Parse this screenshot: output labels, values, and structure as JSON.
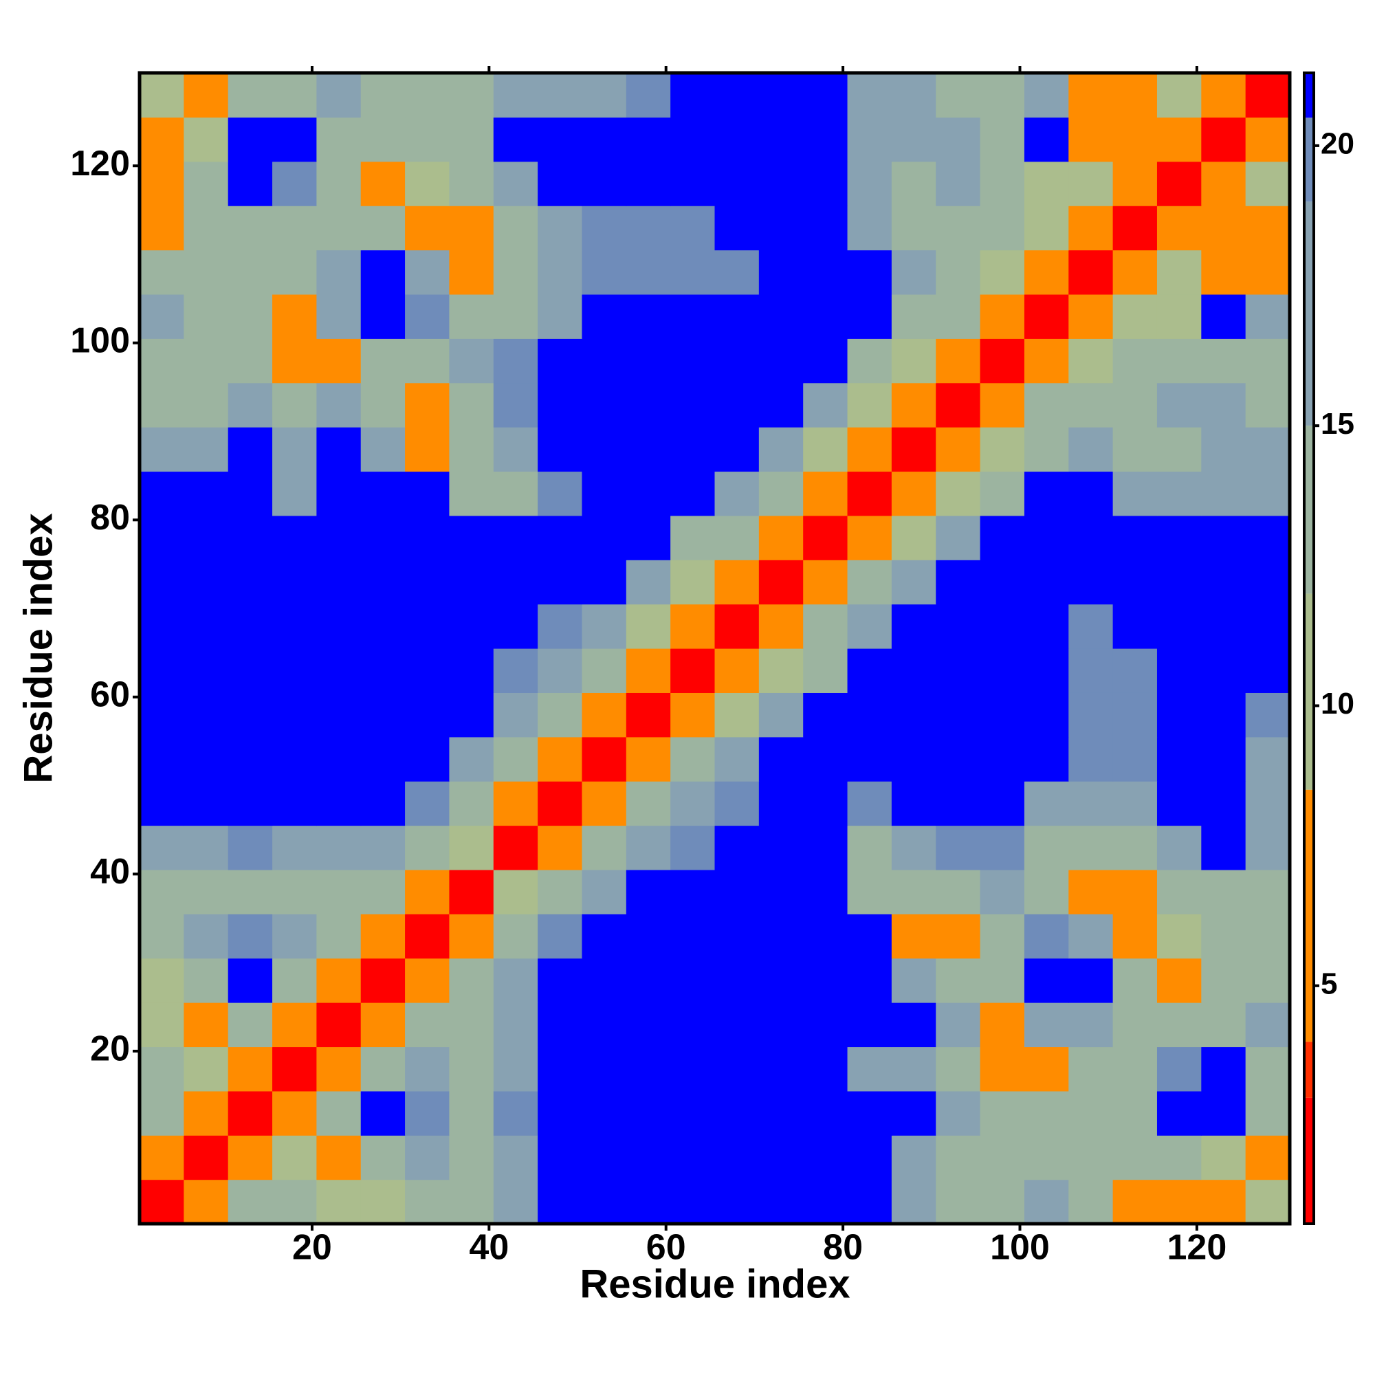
{
  "chart_data": {
    "type": "heatmap",
    "xlabel": "Residue index",
    "ylabel": "Residue index",
    "xlim": [
      0.5,
      130.5
    ],
    "ylim": [
      0.5,
      130.5
    ],
    "xticks": [
      20,
      40,
      60,
      80,
      100,
      120
    ],
    "yticks": [
      20,
      40,
      60,
      80,
      100,
      120
    ],
    "x_edges": [
      0.5,
      5.5,
      10.5,
      15.5,
      20.5,
      25.5,
      30.5,
      35.5,
      40.5,
      45.5,
      50.5,
      55.5,
      60.5,
      65.5,
      70.5,
      75.5,
      80.5,
      85.5,
      90.5,
      95.5,
      100.5,
      105.5,
      110.5,
      115.5,
      120.5,
      125.5,
      130.5
    ],
    "y_edges": [
      0.5,
      5.5,
      10.5,
      15.5,
      20.5,
      25.5,
      30.5,
      35.5,
      40.5,
      45.5,
      50.5,
      55.5,
      60.5,
      65.5,
      70.5,
      75.5,
      80.5,
      85.5,
      90.5,
      95.5,
      100.5,
      105.5,
      110.5,
      115.5,
      120.5,
      125.5,
      130.5
    ],
    "zlim": [
      0.75,
      21.3
    ],
    "zticks": [
      5,
      10,
      15,
      20
    ],
    "colorscale": [
      [
        0.75,
        "#ff0000"
      ],
      [
        3,
        "#ff3000"
      ],
      [
        4,
        "#ff8c00"
      ],
      [
        8.5,
        "#abbd8d"
      ],
      [
        12,
        "#9cb4a0"
      ],
      [
        15,
        "#88a2b2"
      ],
      [
        19,
        "#6f8cba"
      ],
      [
        20.5,
        "#0000ff"
      ]
    ],
    "z": [
      [
        2,
        7,
        12,
        12,
        9,
        11,
        12,
        14,
        18,
        21,
        21,
        21,
        21,
        21,
        21,
        21,
        21,
        17,
        14,
        12,
        16,
        14,
        8,
        7,
        7,
        11
      ],
      [
        7,
        2,
        7,
        9,
        6,
        14,
        16,
        14,
        18,
        21,
        21,
        21,
        21,
        21,
        21,
        21,
        21,
        17,
        14,
        13,
        14,
        13,
        12,
        14,
        11,
        8
      ],
      [
        12,
        7,
        2,
        5,
        12,
        21,
        20,
        14,
        19,
        21,
        21,
        21,
        21,
        21,
        21,
        21,
        21,
        21,
        15,
        12,
        12,
        12,
        13,
        21,
        21,
        14
      ],
      [
        12,
        9,
        5,
        2,
        7,
        14,
        15,
        13,
        17,
        21,
        21,
        21,
        21,
        21,
        21,
        21,
        18,
        17,
        13,
        6,
        8,
        14,
        12,
        20,
        21,
        13
      ],
      [
        9,
        6,
        12,
        7,
        2,
        7,
        12,
        13,
        17,
        21,
        21,
        21,
        21,
        21,
        21,
        21,
        21,
        21,
        17,
        7,
        16,
        18,
        13,
        13,
        13,
        16
      ],
      [
        11,
        14,
        21,
        14,
        7,
        2,
        7,
        12,
        15,
        21,
        21,
        21,
        21,
        21,
        21,
        21,
        21,
        15,
        14,
        14,
        21,
        21,
        12,
        8,
        12,
        12
      ],
      [
        12,
        16,
        20,
        15,
        12,
        7,
        2,
        7,
        13,
        19,
        21,
        21,
        21,
        21,
        21,
        21,
        21,
        8,
        7,
        13,
        20,
        17,
        7,
        11,
        13,
        13
      ],
      [
        14,
        14,
        14,
        13,
        13,
        12,
        7,
        2,
        9,
        13,
        17,
        21,
        21,
        21,
        21,
        21,
        13,
        12,
        13,
        15,
        13,
        7,
        8,
        13,
        14,
        13
      ],
      [
        18,
        18,
        19,
        17,
        17,
        15,
        13,
        9,
        2,
        8,
        12,
        17,
        19,
        21,
        21,
        21,
        14,
        15,
        19,
        20,
        14,
        13,
        14,
        17,
        21,
        15
      ],
      [
        21,
        21,
        21,
        21,
        21,
        21,
        19,
        13,
        8,
        2,
        7,
        12,
        16,
        20,
        21,
        21,
        20,
        21,
        21,
        21,
        17,
        16,
        16,
        21,
        21,
        17
      ],
      [
        21,
        21,
        21,
        21,
        21,
        21,
        21,
        17,
        12,
        7,
        2,
        7,
        12,
        16,
        21,
        21,
        21,
        21,
        21,
        21,
        21,
        19,
        19,
        21,
        21,
        18
      ],
      [
        21,
        21,
        21,
        21,
        21,
        21,
        21,
        21,
        17,
        12,
        7,
        2,
        7,
        11,
        15,
        21,
        21,
        21,
        21,
        21,
        21,
        19,
        20,
        21,
        21,
        20
      ],
      [
        21,
        21,
        21,
        21,
        21,
        21,
        21,
        21,
        19,
        16,
        12,
        7,
        2,
        7,
        11,
        14,
        21,
        21,
        21,
        21,
        21,
        19,
        20,
        21,
        21,
        21
      ],
      [
        21,
        21,
        21,
        21,
        21,
        21,
        21,
        21,
        21,
        20,
        16,
        11,
        7,
        2,
        7,
        12,
        16,
        21,
        21,
        21,
        21,
        20,
        21,
        21,
        21,
        21
      ],
      [
        21,
        21,
        21,
        21,
        21,
        21,
        21,
        21,
        21,
        21,
        21,
        15,
        11,
        7,
        2,
        8,
        12,
        15,
        21,
        21,
        21,
        21,
        21,
        21,
        21,
        21
      ],
      [
        21,
        21,
        21,
        21,
        21,
        21,
        21,
        21,
        21,
        21,
        21,
        21,
        14,
        12,
        8,
        2,
        8,
        11,
        15,
        21,
        21,
        21,
        21,
        21,
        21,
        21
      ],
      [
        21,
        21,
        21,
        18,
        21,
        21,
        21,
        13,
        14,
        20,
        21,
        21,
        21,
        16,
        12,
        8,
        2,
        7,
        11,
        14,
        21,
        21,
        17,
        16,
        17,
        18
      ],
      [
        17,
        17,
        21,
        17,
        21,
        15,
        8,
        12,
        15,
        21,
        21,
        21,
        21,
        21,
        15,
        11,
        7,
        2,
        7,
        11,
        14,
        16,
        14,
        14,
        16,
        15
      ],
      [
        14,
        14,
        15,
        13,
        17,
        14,
        7,
        13,
        19,
        21,
        21,
        21,
        21,
        21,
        21,
        15,
        11,
        7,
        2,
        7,
        12,
        13,
        14,
        15,
        15,
        14
      ],
      [
        12,
        13,
        12,
        6,
        7,
        14,
        13,
        15,
        20,
        21,
        21,
        21,
        21,
        21,
        21,
        21,
        14,
        11,
        7,
        2,
        8,
        11,
        13,
        13,
        14,
        14
      ],
      [
        16,
        14,
        12,
        8,
        16,
        21,
        20,
        13,
        14,
        17,
        21,
        21,
        21,
        21,
        21,
        21,
        21,
        14,
        12,
        8,
        2,
        7,
        11,
        11,
        21,
        18
      ],
      [
        14,
        13,
        12,
        14,
        18,
        21,
        17,
        7,
        13,
        16,
        19,
        19,
        19,
        20,
        21,
        21,
        21,
        16,
        13,
        11,
        7,
        2,
        7,
        10,
        8,
        7
      ],
      [
        8,
        12,
        13,
        12,
        13,
        12,
        7,
        8,
        14,
        16,
        19,
        20,
        20,
        21,
        21,
        21,
        17,
        14,
        14,
        13,
        11,
        7,
        2,
        6,
        7,
        8
      ],
      [
        7,
        14,
        21,
        20,
        13,
        8,
        11,
        13,
        17,
        21,
        21,
        21,
        21,
        21,
        21,
        21,
        16,
        14,
        15,
        13,
        11,
        10,
        6,
        2,
        7,
        9
      ],
      [
        7,
        11,
        21,
        21,
        13,
        12,
        13,
        14,
        21,
        21,
        21,
        21,
        21,
        21,
        21,
        21,
        17,
        16,
        15,
        14,
        21,
        8,
        7,
        7,
        2,
        7
      ],
      [
        11,
        8,
        14,
        13,
        16,
        12,
        13,
        13,
        15,
        17,
        18,
        20,
        21,
        21,
        21,
        21,
        18,
        15,
        14,
        14,
        18,
        7,
        8,
        9,
        7,
        2
      ]
    ]
  }
}
